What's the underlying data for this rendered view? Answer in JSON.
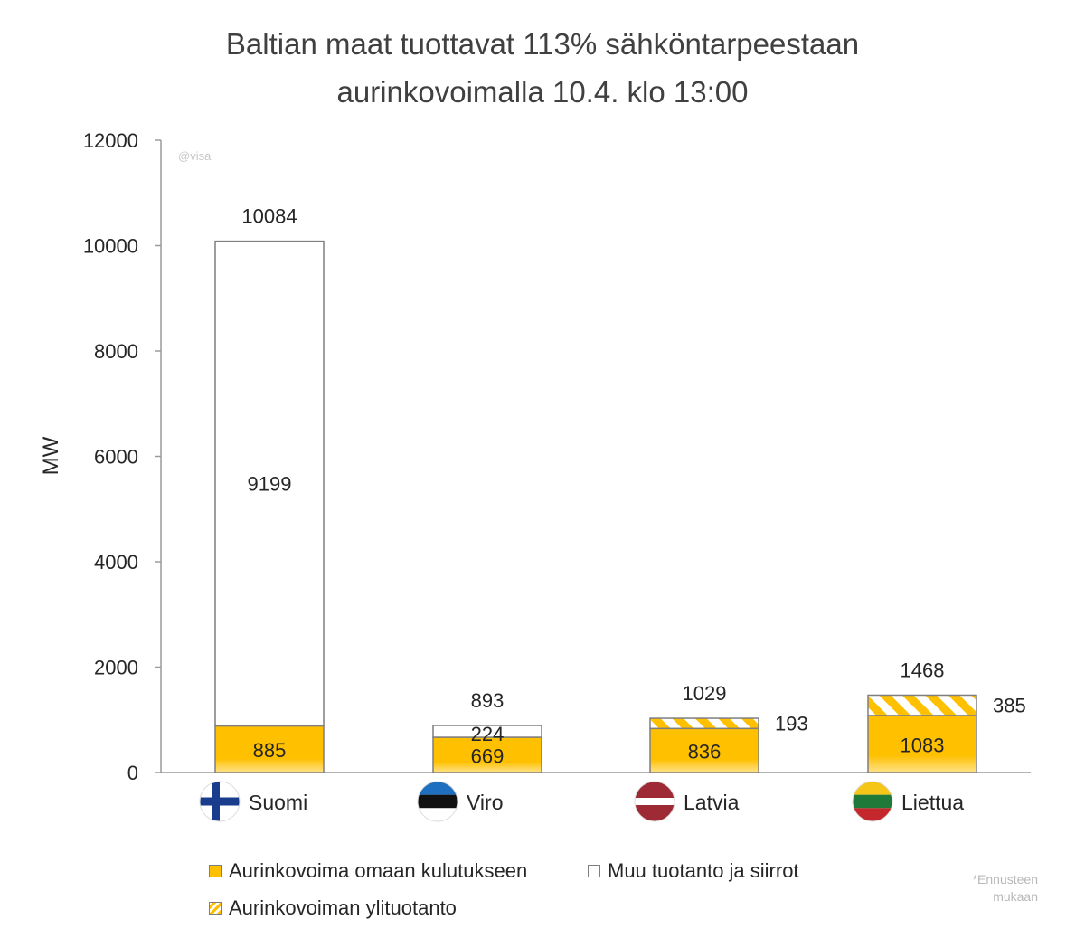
{
  "chart_data": {
    "type": "bar",
    "stacked": true,
    "title": "Baltian maat tuottavat 113% sähköntarpeestaan",
    "subtitle": "aurinkovoimalla 10.4. klo 13:00",
    "ylabel": "MW",
    "xlabel": "",
    "ylim": [
      0,
      12000
    ],
    "yticks": [
      0,
      2000,
      4000,
      6000,
      8000,
      10000,
      12000
    ],
    "categories": [
      "Suomi",
      "Viro",
      "Latvia",
      "Liettua"
    ],
    "flags": [
      "finland-flag-icon",
      "estonia-flag-icon",
      "latvia-flag-icon",
      "lithuania-flag-icon"
    ],
    "series": [
      {
        "name": "Aurinkovoima omaan kulutukseen",
        "values": [
          885,
          669,
          836,
          1083
        ],
        "labels": [
          "885",
          "669",
          "836",
          "1083"
        ],
        "color": "#FFC000",
        "pattern": "solid"
      },
      {
        "name": "Muu tuotanto ja siirrot",
        "values": [
          9199,
          224,
          0,
          0
        ],
        "labels": [
          "9199",
          "224",
          "",
          ""
        ],
        "color": "#FFFFFF",
        "pattern": "outline"
      },
      {
        "name": "Aurinkovoiman ylituotanto",
        "values": [
          0,
          0,
          193,
          385
        ],
        "labels": [
          "",
          "",
          "193",
          "385"
        ],
        "color": "#FFC000",
        "pattern": "hatch"
      }
    ],
    "totals": [
      "10084",
      "893",
      "1029",
      "1468"
    ],
    "grid": false,
    "legend_position": "bottom"
  },
  "watermark": "@visa",
  "note_line1": "*Ennusteen",
  "note_line2": "mukaan",
  "colors": {
    "accent": "#FFC000",
    "axis": "#9a9a9a",
    "text": "#262626",
    "bar_outline": "#7f7f7f"
  }
}
